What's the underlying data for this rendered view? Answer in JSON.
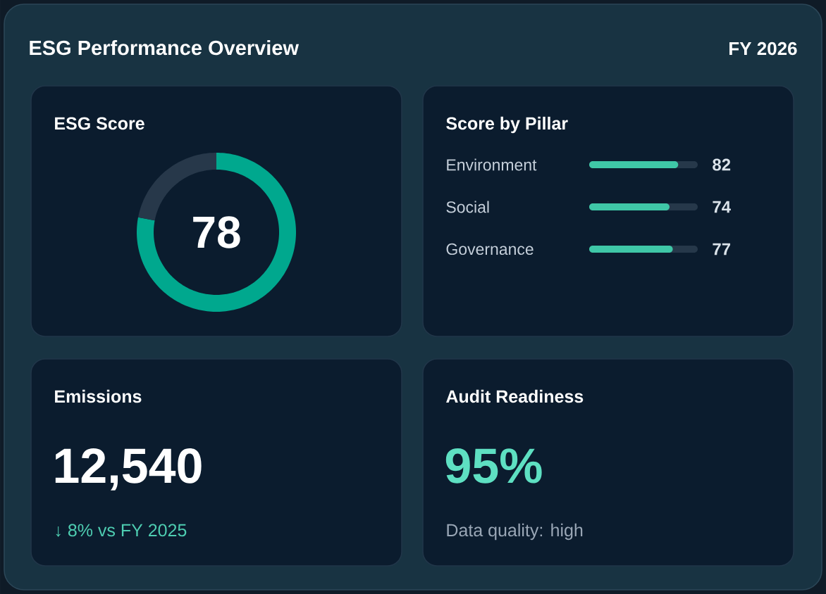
{
  "chart_data": [
    {
      "type": "other",
      "title": "ESG Performance Overview",
      "subtitle": "FY 2026"
    },
    {
      "type": "donut",
      "title": "ESG Score",
      "categories": [
        null,
        null
      ],
      "values": [
        78,
        22
      ],
      "colors": [
        "#00a88e",
        "#27384a"
      ],
      "value_labels": [
        "78",
        null
      ]
    },
    {
      "type": "bar",
      "title": "Score by Pillar",
      "orientation": "horizontal",
      "categories": [
        "Environment",
        "Social",
        "Governance"
      ],
      "values": [
        82,
        74,
        77
      ],
      "color": "#3fc7a7",
      "xlim": [
        0,
        100
      ],
      "data_labels": true,
      "tick_labels": "y"
    },
    {
      "type": "other",
      "title": "Emissions",
      "annotations": [
        "12,540",
        "↓ 8% vs FY 2025"
      ]
    },
    {
      "type": "other",
      "title": "Audit Readiness",
      "annotations": [
        "95%",
        "Data quality: high"
      ]
    }
  ]
}
